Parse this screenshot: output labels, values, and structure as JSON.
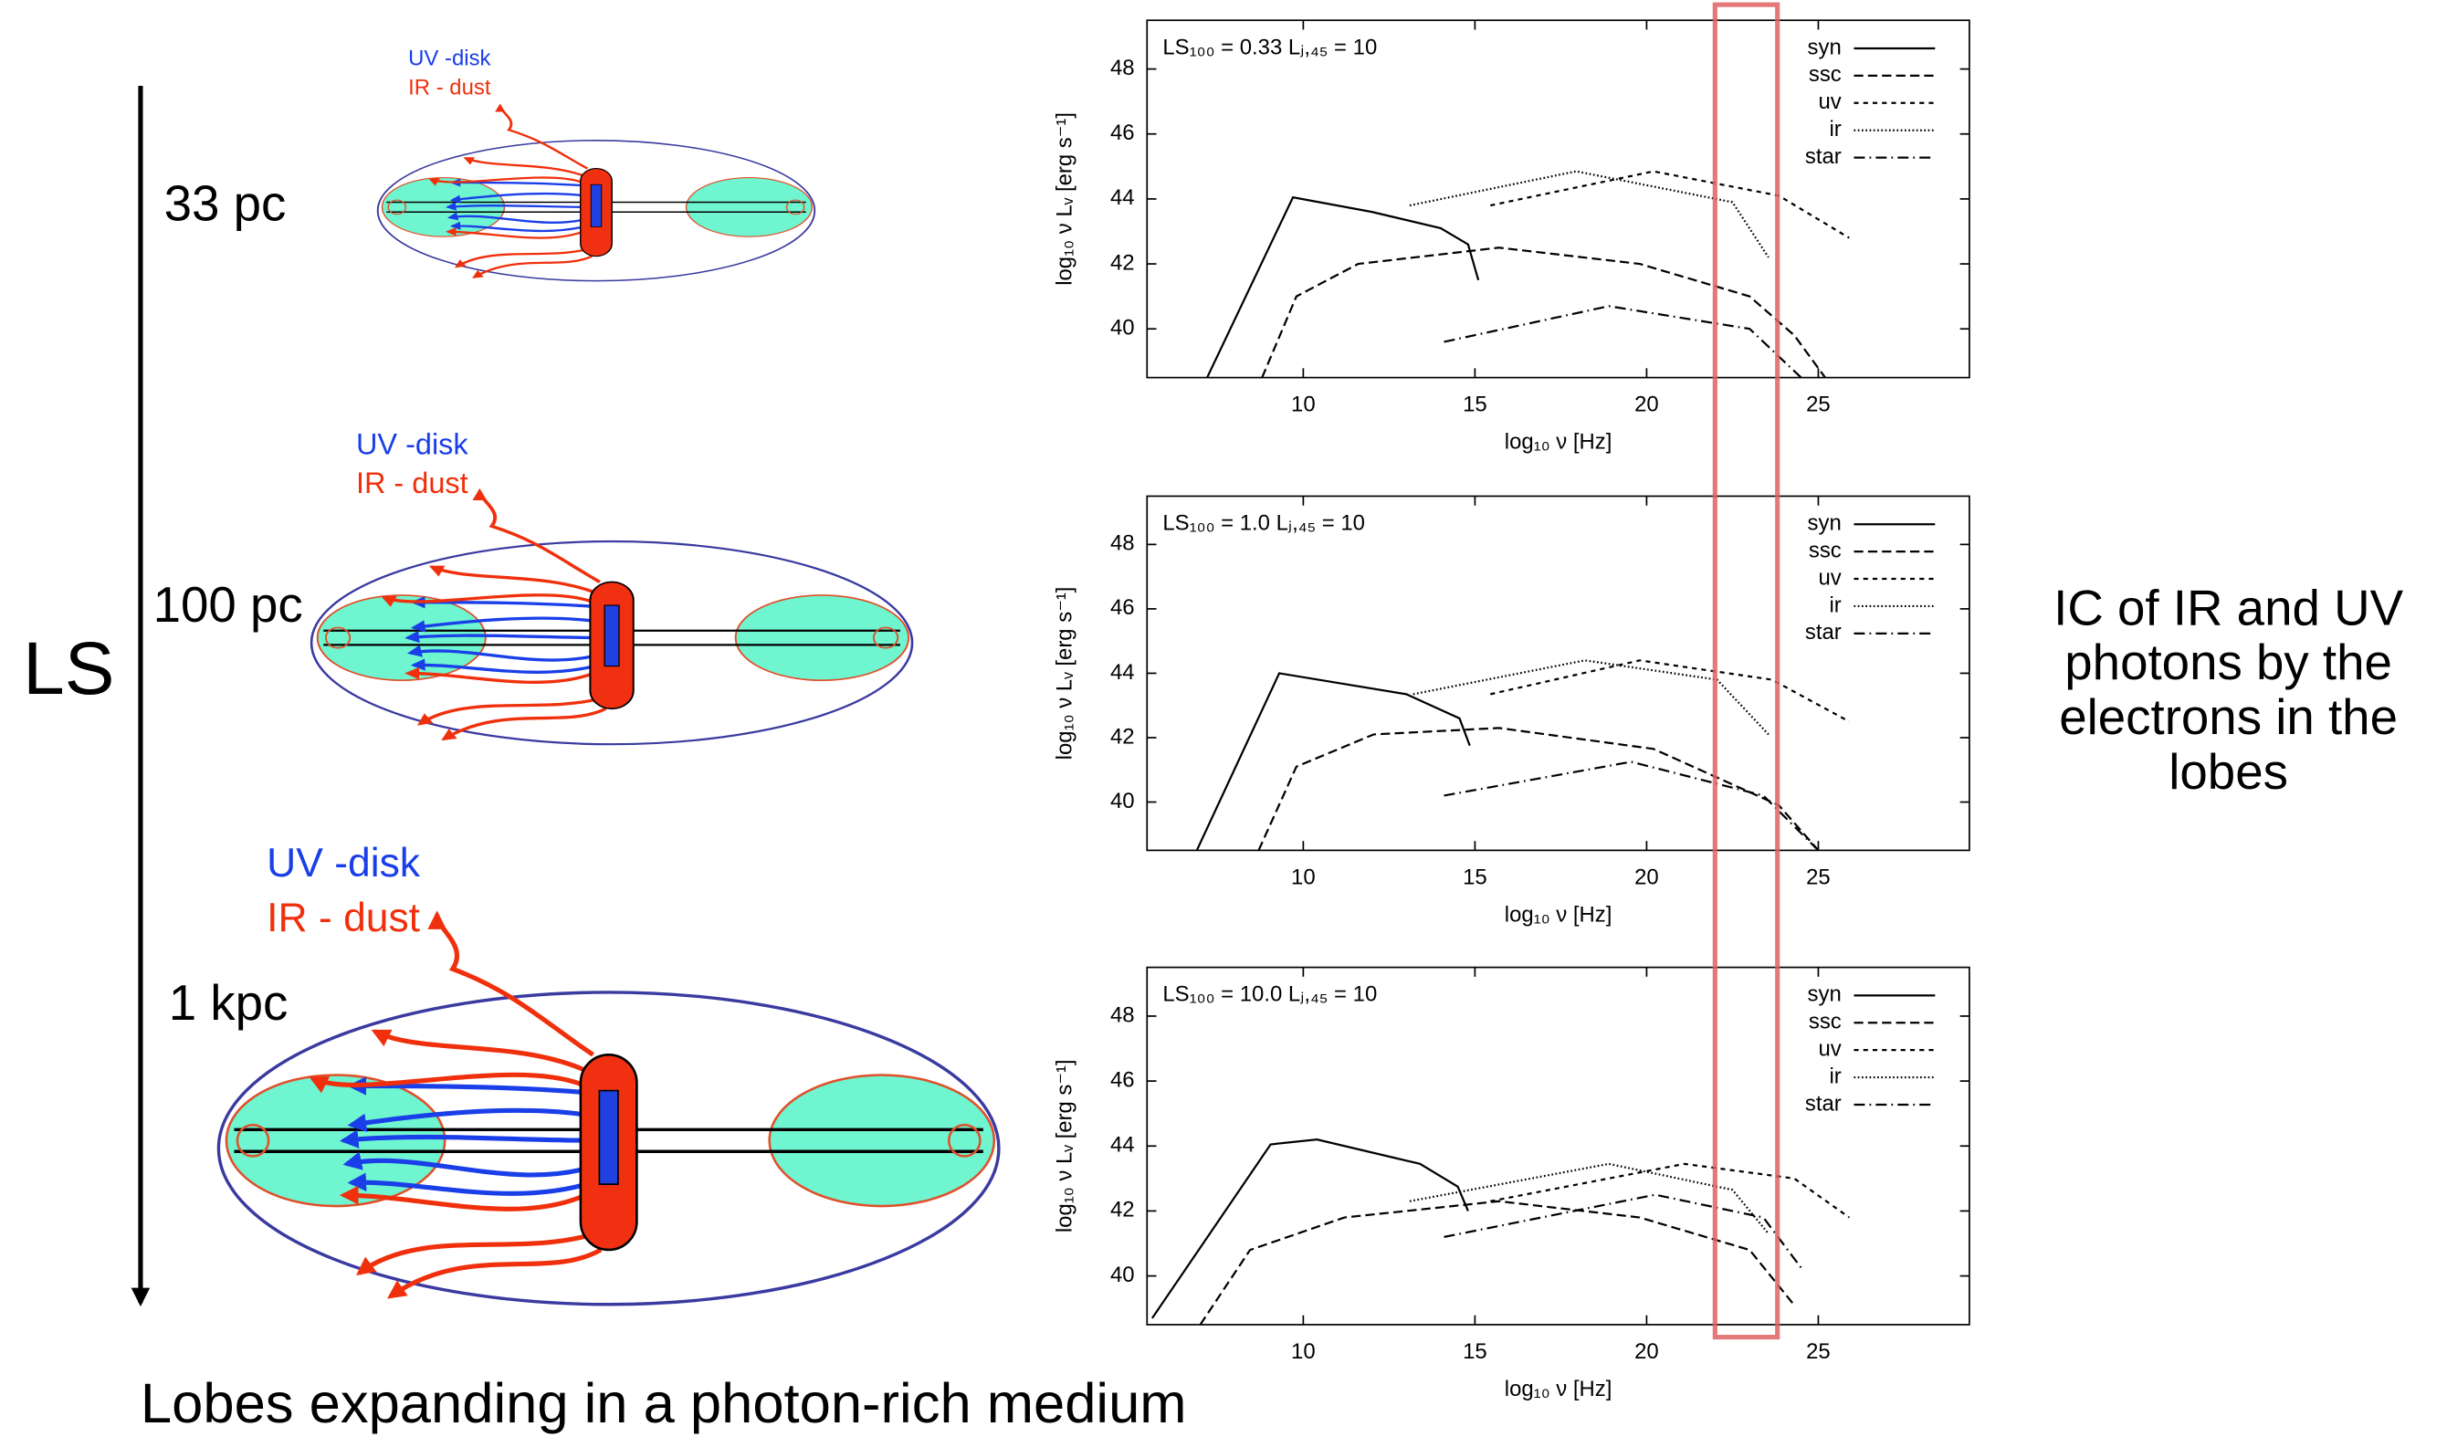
{
  "slide": {
    "labels_small": [
      "UV -disk",
      "IR - dust"
    ],
    "labels_medium": [
      "UV -disk",
      "IR - dust"
    ],
    "labels_large": [
      "UV -disk",
      "IR - dust"
    ],
    "scales": [
      "33 pc",
      "100 pc",
      "1 kpc"
    ],
    "axis_label": "LS",
    "note_lines": [
      "IC of IR and UV",
      "photons by the",
      "electrons in the",
      "lobes"
    ],
    "caption": "Lobes expanding in a photon-rich medium"
  },
  "chart_data": [
    {
      "type": "line",
      "annotation": "LS₁₀₀ = 0.33   Lⱼ,₄₅ = 10",
      "x_label": "log₁₀ ν [Hz]",
      "y_label": "log₁₀ ν Lᵥ [erg s⁻¹]",
      "xlim": [
        5.45,
        29.4
      ],
      "ylim": [
        38.5,
        49.5
      ],
      "xticks": [
        10,
        15,
        20,
        25
      ],
      "yticks": [
        40,
        42,
        44,
        46,
        48
      ],
      "series": [
        {
          "name": "syn",
          "color": "#000",
          "dash": "none",
          "x": [
            7.2,
            9.7,
            12,
            14,
            14.8,
            15.1
          ],
          "values": [
            38.5,
            44.05,
            43.6,
            43.1,
            42.6,
            41.5
          ]
        },
        {
          "name": "ssc",
          "color": "#000",
          "dash": "6 3",
          "x": [
            8.8,
            9.8,
            11.6,
            15.7,
            19.8,
            23,
            24.3,
            25.2
          ],
          "values": [
            38.5,
            41,
            42,
            42.5,
            42,
            41,
            39.8,
            38.5
          ]
        },
        {
          "name": "uv",
          "color": "#000",
          "dash": "3 3",
          "x": [
            15.45,
            20.2,
            23.85,
            25.9
          ],
          "values": [
            43.8,
            44.85,
            44.1,
            42.8
          ]
        },
        {
          "name": "ir",
          "color": "#000",
          "dash": "1 1.5",
          "x": [
            13.1,
            17.95,
            22.5,
            23.55
          ],
          "values": [
            43.8,
            44.85,
            43.9,
            42.2
          ]
        },
        {
          "name": "star",
          "color": "#000",
          "dash": "7 3 1 3",
          "x": [
            14.1,
            18.9,
            23,
            24.5
          ],
          "values": [
            39.6,
            40.7,
            40,
            38.5
          ]
        }
      ]
    },
    {
      "type": "line",
      "annotation": "LS₁₀₀ = 1.0   Lⱼ,₄₅ = 10",
      "x_label": "log₁₀ ν [Hz]",
      "y_label": "log₁₀ ν Lᵥ [erg s⁻¹]",
      "xlim": [
        5.45,
        29.4
      ],
      "ylim": [
        38.5,
        49.5
      ],
      "xticks": [
        10,
        15,
        20,
        25
      ],
      "yticks": [
        40,
        42,
        44,
        46,
        48
      ],
      "series": [
        {
          "name": "syn",
          "color": "#000",
          "dash": "none",
          "x": [
            6.9,
            9.3,
            13,
            14.55,
            14.85
          ],
          "values": [
            38.5,
            44.0,
            43.35,
            42.6,
            41.75
          ]
        },
        {
          "name": "ssc",
          "color": "#000",
          "dash": "6 3",
          "x": [
            8.7,
            9.8,
            12.05,
            15.7,
            20.2,
            23.85,
            25
          ],
          "values": [
            38.5,
            41.1,
            42.1,
            42.3,
            41.65,
            39.9,
            38.5
          ]
        },
        {
          "name": "uv",
          "color": "#000",
          "dash": "3 3",
          "x": [
            15.45,
            19.8,
            23.65,
            25.9
          ],
          "values": [
            43.35,
            44.4,
            43.8,
            42.5
          ]
        },
        {
          "name": "ir",
          "color": "#000",
          "dash": "1 1.5",
          "x": [
            13.2,
            18.2,
            22.05,
            23.55
          ],
          "values": [
            43.35,
            44.4,
            43.8,
            42.1
          ]
        },
        {
          "name": "star",
          "color": "#000",
          "dash": "7 3 1 3",
          "x": [
            14.1,
            19.55,
            23.4,
            25
          ],
          "values": [
            40.2,
            41.25,
            40.2,
            38.5
          ]
        }
      ]
    },
    {
      "type": "line",
      "annotation": "LS₁₀₀ = 10.0   Lⱼ,₄₅ = 10",
      "x_label": "log₁₀ ν [Hz]",
      "y_label": "log₁₀ ν Lᵥ [erg s⁻¹]",
      "xlim": [
        5.45,
        29.4
      ],
      "ylim": [
        38.5,
        49.5
      ],
      "xticks": [
        10,
        15,
        20,
        25
      ],
      "yticks": [
        40,
        42,
        44,
        46,
        48
      ],
      "series": [
        {
          "name": "syn",
          "color": "#000",
          "dash": "none",
          "x": [
            5.6,
            9.05,
            10.4,
            13.4,
            14.5,
            14.8
          ],
          "values": [
            38.7,
            44.05,
            44.2,
            43.45,
            42.75,
            42.0
          ]
        },
        {
          "name": "ssc",
          "color": "#000",
          "dash": "6 3",
          "x": [
            7.0,
            8.45,
            11.2,
            15.7,
            19.8,
            23,
            24.3
          ],
          "values": [
            38.5,
            40.8,
            41.8,
            42.3,
            41.8,
            40.8,
            39.1
          ]
        },
        {
          "name": "uv",
          "color": "#000",
          "dash": "3 3",
          "x": [
            15.45,
            21.1,
            24.3,
            25.9
          ],
          "values": [
            42.3,
            43.45,
            43.0,
            41.8
          ]
        },
        {
          "name": "ir",
          "color": "#000",
          "dash": "1 1.5",
          "x": [
            13.1,
            18.9,
            22.5,
            23.55
          ],
          "values": [
            42.3,
            43.45,
            42.65,
            41.3
          ]
        },
        {
          "name": "star",
          "color": "#000",
          "dash": "7 3 1 3",
          "x": [
            14.1,
            20.25,
            23.4,
            24.5
          ],
          "values": [
            41.2,
            42.5,
            41.8,
            40.25
          ]
        }
      ]
    }
  ]
}
